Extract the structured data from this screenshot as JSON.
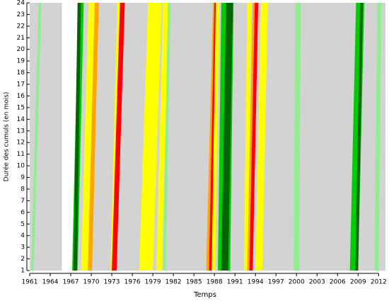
{
  "chart_data": {
    "type": "stripes",
    "x_label": "Temps",
    "y_label": "Durée des cumuls (en mois)",
    "background": "#d3d3d3",
    "levels": [
      "#006400",
      "#00cd00",
      "#90ee90",
      "#ffff00",
      "#ffa500",
      "#ff0000",
      "#ffffff"
    ],
    "stripes": [
      {
        "start": 1961.2,
        "end": 1962.3,
        "width": 0.4,
        "level": 2
      },
      {
        "start": 1965.7,
        "end": 1965.7,
        "width": 2.3,
        "level": 6
      },
      {
        "start": 1967.2,
        "end": 1968.1,
        "width": 0.8,
        "level": 1
      },
      {
        "start": 1967.4,
        "end": 1968.0,
        "width": 0.5,
        "level": 0
      },
      {
        "start": 1968.5,
        "end": 1969.6,
        "width": 1.5,
        "level": 3
      },
      {
        "start": 1969.5,
        "end": 1970.5,
        "width": 0.6,
        "level": 4
      },
      {
        "start": 1972.8,
        "end": 1973.8,
        "width": 0.4,
        "level": 3
      },
      {
        "start": 1973.0,
        "end": 1974.2,
        "width": 0.7,
        "level": 5
      },
      {
        "start": 1977.0,
        "end": 1978.3,
        "width": 2.0,
        "level": 3
      },
      {
        "start": 1979.5,
        "end": 1980.5,
        "width": 0.8,
        "level": 3
      },
      {
        "start": 1980.5,
        "end": 1981.2,
        "width": 0.4,
        "level": 2
      },
      {
        "start": 1986.8,
        "end": 1987.8,
        "width": 0.5,
        "level": 4
      },
      {
        "start": 1987.2,
        "end": 1988.0,
        "width": 0.4,
        "level": 5
      },
      {
        "start": 1987.6,
        "end": 1988.2,
        "width": 0.5,
        "level": 3
      },
      {
        "start": 1988.5,
        "end": 1989.0,
        "width": 1.8,
        "level": 1
      },
      {
        "start": 1989.0,
        "end": 1989.7,
        "width": 1.0,
        "level": 0
      },
      {
        "start": 1992.3,
        "end": 1992.8,
        "width": 0.6,
        "level": 3
      },
      {
        "start": 1992.8,
        "end": 1993.6,
        "width": 0.4,
        "level": 4
      },
      {
        "start": 1993.1,
        "end": 1993.9,
        "width": 0.5,
        "level": 5
      },
      {
        "start": 1994.0,
        "end": 1994.8,
        "width": 1.0,
        "level": 3
      },
      {
        "start": 1999.6,
        "end": 1999.8,
        "width": 0.8,
        "level": 2
      },
      {
        "start": 2007.8,
        "end": 2008.7,
        "width": 1.2,
        "level": 1
      },
      {
        "start": 2008.6,
        "end": 2009.3,
        "width": 0.4,
        "level": 0
      },
      {
        "start": 2011.4,
        "end": 2011.8,
        "width": 0.6,
        "level": 2
      }
    ],
    "xlim": [
      1961,
      2013
    ],
    "ylim": [
      1,
      24
    ],
    "xticks": [
      1961,
      1964,
      1967,
      1970,
      1973,
      1976,
      1979,
      1982,
      1985,
      1988,
      1991,
      1994,
      1997,
      2000,
      2003,
      2006,
      2009,
      2012
    ],
    "yticks": [
      1,
      2,
      3,
      4,
      5,
      6,
      7,
      8,
      9,
      10,
      11,
      12,
      13,
      14,
      15,
      16,
      17,
      18,
      19,
      20,
      21,
      22,
      23,
      24
    ]
  }
}
